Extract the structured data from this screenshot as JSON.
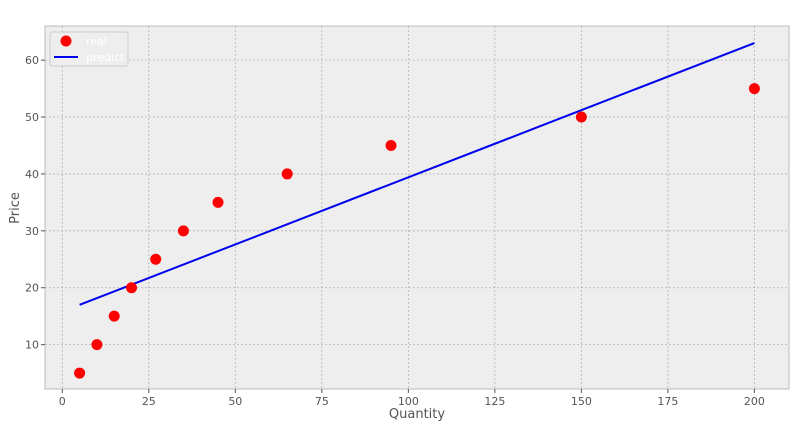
{
  "chart_data": {
    "type": "scatter",
    "xlabel": "Quantity",
    "ylabel": "Price",
    "xlim": [
      -5,
      210
    ],
    "ylim": [
      2.2,
      66
    ],
    "x_ticks": [
      0,
      25,
      50,
      75,
      100,
      125,
      150,
      175,
      200
    ],
    "y_ticks": [
      10,
      20,
      30,
      40,
      50,
      60
    ],
    "grid": true,
    "legend_position": "top-left",
    "series": [
      {
        "name": "real",
        "kind": "scatter",
        "color": "#ff0000",
        "x": [
          5,
          10,
          15,
          20,
          27,
          35,
          45,
          65,
          95,
          150,
          200
        ],
        "y": [
          5,
          10,
          15,
          20,
          25,
          30,
          35,
          40,
          45,
          50,
          55
        ]
      },
      {
        "name": "predict",
        "kind": "line",
        "color": "#0000ee",
        "x": [
          5,
          200
        ],
        "y": [
          17,
          63
        ]
      }
    ]
  }
}
